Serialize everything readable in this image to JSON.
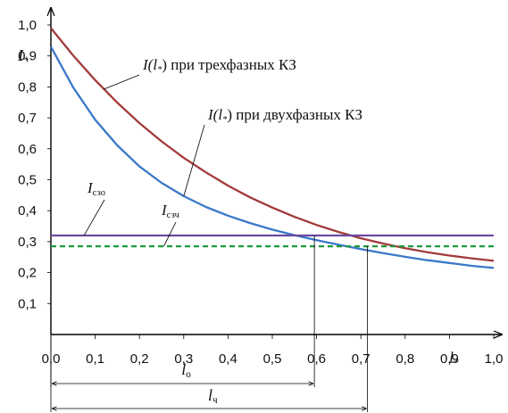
{
  "chart_data": {
    "type": "line",
    "xlim": [
      0,
      1.0
    ],
    "ylim": [
      0,
      1.0
    ],
    "x_ticks": [
      "0,0",
      "0,1",
      "0,2",
      "0,3",
      "0,4",
      "0,5",
      "0,6",
      "0,7",
      "0,8",
      "0,9",
      "1,0"
    ],
    "y_ticks": [
      "0,1",
      "0,2",
      "0,3",
      "0,4",
      "0,5",
      "0,6",
      "0,7",
      "0,8",
      "0,9",
      "1,0"
    ],
    "xlabel": {
      "main": "l",
      "sub": "*"
    },
    "ylabel": {
      "main": "I",
      "sub": "*"
    },
    "grid": false,
    "series": [
      {
        "name": {
          "pre": "I(l",
          "sub": "*",
          "post": ") при трехфазных КЗ"
        },
        "color": "#a23a3a",
        "style": "solid",
        "x": [
          0,
          0.05,
          0.1,
          0.15,
          0.2,
          0.25,
          0.3,
          0.35,
          0.4,
          0.45,
          0.5,
          0.55,
          0.6,
          0.65,
          0.7,
          0.75,
          0.8,
          0.85,
          0.9,
          0.95,
          1.0
        ],
        "y": [
          0.99,
          0.902,
          0.822,
          0.749,
          0.683,
          0.624,
          0.571,
          0.524,
          0.481,
          0.443,
          0.41,
          0.38,
          0.354,
          0.331,
          0.311,
          0.294,
          0.279,
          0.266,
          0.255,
          0.246,
          0.238
        ]
      },
      {
        "name": {
          "pre": "I(l",
          "sub": "*",
          "post": ") при двухфазных КЗ"
        },
        "color": "#3a78c9",
        "style": "solid",
        "x": [
          0,
          0.05,
          0.1,
          0.15,
          0.2,
          0.25,
          0.3,
          0.35,
          0.4,
          0.45,
          0.5,
          0.55,
          0.6,
          0.65,
          0.7,
          0.75,
          0.8,
          0.85,
          0.9,
          0.95,
          1.0
        ],
        "y": [
          0.93,
          0.799,
          0.694,
          0.611,
          0.543,
          0.49,
          0.447,
          0.412,
          0.384,
          0.36,
          0.339,
          0.321,
          0.305,
          0.29,
          0.276,
          0.263,
          0.251,
          0.24,
          0.231,
          0.222,
          0.215
        ]
      },
      {
        "name": {
          "pre": "I",
          "sub": "сзо",
          "post": ""
        },
        "color": "#6a4aa0",
        "style": "solid",
        "x": [
          0,
          1.0
        ],
        "y": [
          0.32,
          0.32
        ]
      },
      {
        "name": {
          "pre": "I",
          "sub": "сзч",
          "post": ""
        },
        "color": "#1f9a3a",
        "style": "dashed",
        "x": [
          0,
          1.0
        ],
        "y": [
          0.285,
          0.285
        ]
      }
    ],
    "markers": [
      {
        "x": 0.595,
        "y": 0.32,
        "label": {
          "main": "l",
          "sub": "о"
        }
      },
      {
        "x": 0.715,
        "y": 0.285,
        "label": {
          "main": "l",
          "sub": "ч"
        }
      }
    ]
  }
}
